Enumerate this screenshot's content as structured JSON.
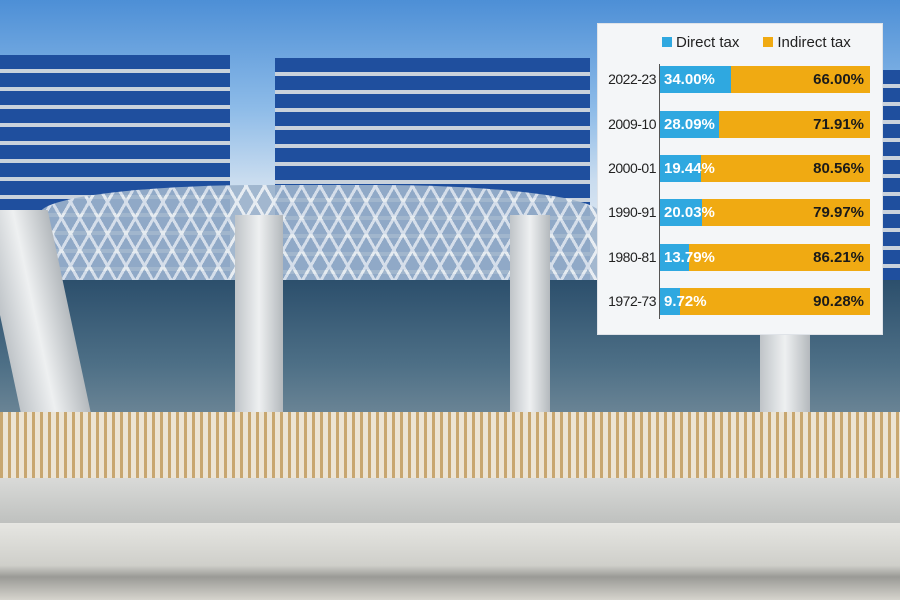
{
  "chart_data": {
    "type": "bar",
    "stacked": true,
    "orientation": "horizontal",
    "legend_position": "top",
    "categories": [
      "2022-23",
      "2009-10",
      "2000-01",
      "1990-91",
      "1980-81",
      "1972-73"
    ],
    "series": [
      {
        "name": "Direct tax",
        "color": "#2fa8e0",
        "values": [
          34.0,
          28.09,
          19.44,
          20.03,
          13.79,
          9.72
        ],
        "labels": [
          "34.00%",
          "28.09%",
          "19.44%",
          "20.03%",
          "13.79%",
          "9.72%"
        ]
      },
      {
        "name": "Indirect tax",
        "color": "#f0aa12",
        "values": [
          66.0,
          71.91,
          80.56,
          79.97,
          86.21,
          90.28
        ],
        "labels": [
          "66.00%",
          "71.91%",
          "80.56%",
          "79.97%",
          "86.21%",
          "90.28%"
        ]
      }
    ],
    "xlim": [
      0,
      100
    ],
    "grid": false
  }
}
